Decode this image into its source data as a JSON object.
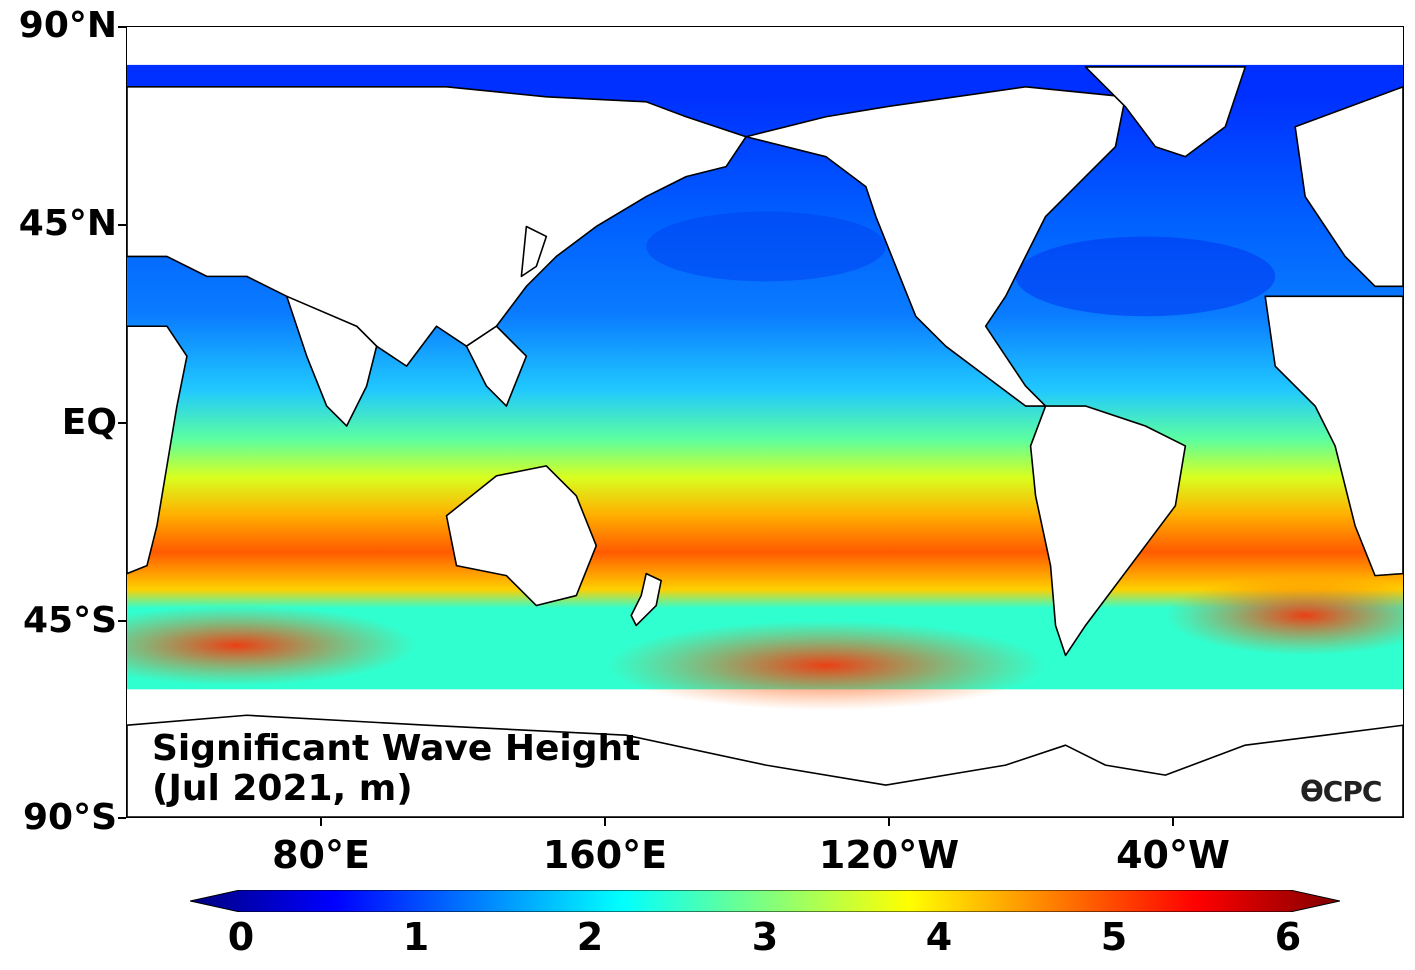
{
  "map": {
    "title_line1": "Significant Wave Height",
    "title_line2": "(Jul 2021, m)",
    "credit": "ϴCPC",
    "lat_labels": [
      "90°N",
      "45°N",
      "EQ",
      "45°S",
      "90°S"
    ],
    "lon_labels": [
      "80°E",
      "160°E",
      "120°W",
      "40°W"
    ],
    "colorbar": {
      "ticks": [
        "0",
        "1",
        "2",
        "3",
        "4",
        "5",
        "6"
      ],
      "min": 0,
      "max": 6,
      "colormap": "jet",
      "colors": [
        "#00007f",
        "#0000ff",
        "#007fff",
        "#00ffff",
        "#7fff7f",
        "#ffff00",
        "#ff7f00",
        "#ff0000",
        "#7f0000"
      ]
    },
    "land_color": "#ffffff",
    "coastline_color": "#000000"
  }
}
